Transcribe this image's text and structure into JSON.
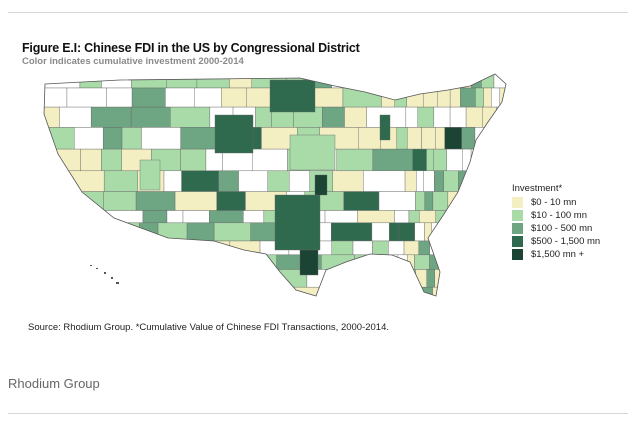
{
  "figure": {
    "title": "Figure E.I: Chinese FDI in the US by Congressional District",
    "subtitle": "Color indicates cumulative investment 2000-2014"
  },
  "legend": {
    "title": "Investment*",
    "items": [
      {
        "label": "$0 - 10 mn",
        "color": "#f4efc2"
      },
      {
        "label": "$10 - 100 mn",
        "color": "#a9dba9"
      },
      {
        "label": "$100 - 500 mn",
        "color": "#6ea583"
      },
      {
        "label": "$500 - 1,500 mn",
        "color": "#2f6a4e"
      },
      {
        "label": "$1,500 mn +",
        "color": "#1c4434"
      }
    ],
    "no_data_color": "#ffffff"
  },
  "source": "Source: Rhodium Group. *Cumulative Value of Chinese FDI Transactions, 2000-2014.",
  "credit": "Rhodium Group"
}
